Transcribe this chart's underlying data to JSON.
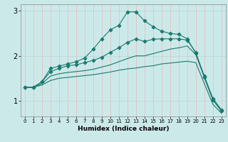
{
  "xlabel": "Humidex (Indice chaleur)",
  "xlim": [
    -0.5,
    23.5
  ],
  "ylim": [
    0.65,
    3.15
  ],
  "yticks": [
    1,
    2,
    3
  ],
  "xticks": [
    0,
    1,
    2,
    3,
    4,
    5,
    6,
    7,
    8,
    9,
    10,
    11,
    12,
    13,
    14,
    15,
    16,
    17,
    18,
    19,
    20,
    21,
    22,
    23
  ],
  "bg_color": "#cce9ea",
  "grid_color_v": "#e8b8b8",
  "grid_color_h": "#c0d8d8",
  "line_color": "#1a7a6e",
  "lines": [
    {
      "x": [
        0,
        1,
        2,
        3,
        4,
        5,
        6,
        7,
        8,
        9,
        10,
        11,
        12,
        13,
        14,
        15,
        16,
        17,
        18,
        19,
        20,
        21,
        22,
        23
      ],
      "y": [
        1.3,
        1.3,
        1.42,
        1.72,
        1.77,
        1.82,
        1.87,
        1.95,
        2.15,
        2.38,
        2.58,
        2.68,
        2.98,
        2.98,
        2.78,
        2.65,
        2.55,
        2.5,
        2.48,
        2.38,
        2.06,
        1.55,
        1.05,
        0.8
      ],
      "marker": "D",
      "markersize": 2.5,
      "linestyle": "-"
    },
    {
      "x": [
        0,
        1,
        2,
        3,
        4,
        5,
        6,
        7,
        8,
        9,
        10,
        11,
        12,
        13,
        14,
        15,
        16,
        17,
        18,
        19,
        20,
        21,
        22,
        23
      ],
      "y": [
        1.3,
        1.3,
        1.42,
        1.65,
        1.72,
        1.78,
        1.8,
        1.85,
        1.9,
        1.97,
        2.08,
        2.18,
        2.3,
        2.38,
        2.32,
        2.37,
        2.38,
        2.38,
        2.38,
        2.35,
        2.08,
        1.52,
        1.02,
        0.77
      ],
      "marker": "D",
      "markersize": 2.5,
      "linestyle": "-"
    },
    {
      "x": [
        0,
        1,
        2,
        3,
        4,
        5,
        6,
        7,
        8,
        9,
        10,
        11,
        12,
        13,
        14,
        15,
        16,
        17,
        18,
        19,
        20,
        21,
        22,
        23
      ],
      "y": [
        1.3,
        1.3,
        1.38,
        1.55,
        1.6,
        1.63,
        1.65,
        1.67,
        1.7,
        1.75,
        1.8,
        1.87,
        1.94,
        2.0,
        2.0,
        2.05,
        2.1,
        2.15,
        2.18,
        2.22,
        2.03,
        1.52,
        1.02,
        0.77
      ],
      "marker": null,
      "markersize": 0,
      "linestyle": "-"
    },
    {
      "x": [
        0,
        1,
        2,
        3,
        4,
        5,
        6,
        7,
        8,
        9,
        10,
        11,
        12,
        13,
        14,
        15,
        16,
        17,
        18,
        19,
        20,
        21,
        22,
        23
      ],
      "y": [
        1.3,
        1.3,
        1.35,
        1.45,
        1.5,
        1.52,
        1.54,
        1.56,
        1.58,
        1.61,
        1.64,
        1.68,
        1.71,
        1.73,
        1.76,
        1.78,
        1.82,
        1.84,
        1.86,
        1.88,
        1.85,
        1.38,
        0.92,
        0.72
      ],
      "marker": null,
      "markersize": 0,
      "linestyle": "-"
    }
  ]
}
